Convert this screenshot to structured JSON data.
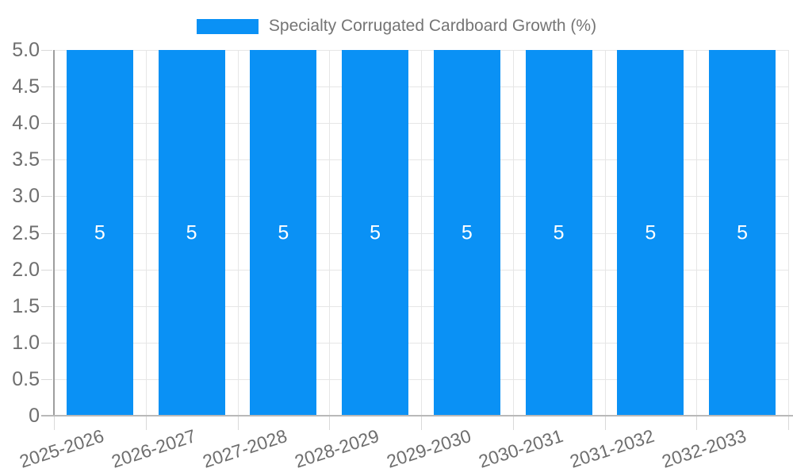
{
  "chart_data": {
    "type": "bar",
    "title": "Specialty Corrugated Cardboard Growth (%)",
    "legend": {
      "label": "Specialty Corrugated Cardboard Growth (%)",
      "position": "top-center"
    },
    "categories": [
      "2025-2026",
      "2026-2027",
      "2027-2028",
      "2028-2029",
      "2029-2030",
      "2030-2031",
      "2031-2032",
      "2032-2033"
    ],
    "series": [
      {
        "name": "Specialty Corrugated Cardboard Growth (%)",
        "values": [
          5,
          5,
          5,
          5,
          5,
          5,
          5,
          5
        ],
        "bar_labels": [
          "5",
          "5",
          "5",
          "5",
          "5",
          "5",
          "5",
          "5"
        ]
      }
    ],
    "xlabel": "",
    "ylabel": "",
    "ylim": [
      0,
      5
    ],
    "y_ticks": [
      "5.0",
      "4.5",
      "4.0",
      "3.5",
      "3.0",
      "2.5",
      "2.0",
      "1.5",
      "1.0",
      "0.5",
      "0"
    ],
    "x_label_rotation_deg": -18,
    "grid": true,
    "colors": {
      "bar": "#0a91f5",
      "bar_label": "#ffffff",
      "grid_line": "#e6e6e6",
      "axis_line": "#9e9e9e",
      "axis_bottom_line": "#b9b9b9",
      "tick_line": "#d9d9d9",
      "axis_text": "#6e6e6e",
      "legend_text": "#757575"
    }
  }
}
